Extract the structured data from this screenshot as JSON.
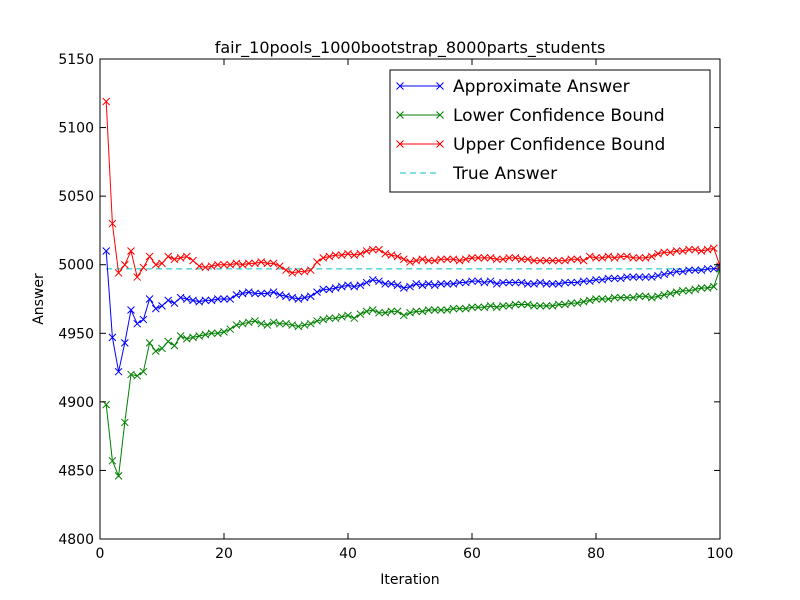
{
  "chart_data": {
    "type": "line",
    "title": "fair_10pools_1000bootstrap_8000parts_students",
    "xlabel": "Iteration",
    "ylabel": "Answer",
    "xlim": [
      0,
      100
    ],
    "ylim": [
      4800,
      5150
    ],
    "xticks": [
      0,
      20,
      40,
      60,
      80,
      100
    ],
    "yticks": [
      4800,
      4850,
      4900,
      4950,
      5000,
      5050,
      5100,
      5150
    ],
    "grid": false,
    "legend_position": "top-right",
    "x": [
      1,
      2,
      3,
      4,
      5,
      6,
      7,
      8,
      9,
      10,
      11,
      12,
      13,
      14,
      15,
      16,
      17,
      18,
      19,
      20,
      21,
      22,
      23,
      24,
      25,
      26,
      27,
      28,
      29,
      30,
      31,
      32,
      33,
      34,
      35,
      36,
      37,
      38,
      39,
      40,
      41,
      42,
      43,
      44,
      45,
      46,
      47,
      48,
      49,
      50,
      51,
      52,
      53,
      54,
      55,
      56,
      57,
      58,
      59,
      60,
      61,
      62,
      63,
      64,
      65,
      66,
      67,
      68,
      69,
      70,
      71,
      72,
      73,
      74,
      75,
      76,
      77,
      78,
      79,
      80,
      81,
      82,
      83,
      84,
      85,
      86,
      87,
      88,
      89,
      90,
      91,
      92,
      93,
      94,
      95,
      96,
      97,
      98,
      99,
      100
    ],
    "series": [
      {
        "name": "Approximate Answer",
        "color": "#0000ff",
        "marker": "x",
        "linestyle": "solid",
        "values": [
          5010,
          4947,
          4922,
          4943,
          4967,
          4957,
          4960,
          4975,
          4968,
          4970,
          4974,
          4972,
          4976,
          4975,
          4974,
          4973,
          4974,
          4974,
          4975,
          4975,
          4975,
          4978,
          4979,
          4980,
          4979,
          4979,
          4979,
          4980,
          4978,
          4977,
          4976,
          4975,
          4976,
          4977,
          4980,
          4982,
          4982,
          4983,
          4984,
          4985,
          4984,
          4985,
          4987,
          4989,
          4988,
          4986,
          4986,
          4985,
          4983,
          4984,
          4986,
          4985,
          4986,
          4985,
          4986,
          4986,
          4986,
          4987,
          4987,
          4988,
          4988,
          4987,
          4988,
          4986,
          4987,
          4987,
          4987,
          4987,
          4986,
          4986,
          4987,
          4986,
          4986,
          4986,
          4987,
          4987,
          4987,
          4988,
          4988,
          4989,
          4989,
          4990,
          4990,
          4990,
          4991,
          4991,
          4991,
          4991,
          4991,
          4992,
          4993,
          4994,
          4995,
          4995,
          4996,
          4996,
          4996,
          4997,
          4997,
          4998
        ]
      },
      {
        "name": "Lower Confidence Bound",
        "color": "#008000",
        "marker": "x",
        "linestyle": "solid",
        "values": [
          4898,
          4857,
          4846,
          4885,
          4920,
          4919,
          4922,
          4943,
          4937,
          4939,
          4944,
          4941,
          4948,
          4946,
          4947,
          4948,
          4949,
          4950,
          4950,
          4951,
          4953,
          4956,
          4957,
          4958,
          4959,
          4957,
          4956,
          4958,
          4957,
          4957,
          4956,
          4955,
          4956,
          4957,
          4959,
          4960,
          4961,
          4961,
          4962,
          4963,
          4961,
          4964,
          4966,
          4967,
          4965,
          4965,
          4966,
          4966,
          4963,
          4965,
          4966,
          4966,
          4967,
          4967,
          4967,
          4967,
          4968,
          4968,
          4968,
          4969,
          4969,
          4969,
          4970,
          4969,
          4970,
          4970,
          4971,
          4971,
          4971,
          4970,
          4970,
          4970,
          4970,
          4971,
          4971,
          4972,
          4972,
          4973,
          4974,
          4975,
          4975,
          4975,
          4976,
          4976,
          4976,
          4976,
          4977,
          4977,
          4976,
          4977,
          4978,
          4979,
          4980,
          4981,
          4981,
          4982,
          4983,
          4983,
          4984,
          4997
        ]
      },
      {
        "name": "Upper Confidence Bound",
        "color": "#ff0000",
        "marker": "x",
        "linestyle": "solid",
        "values": [
          5119,
          5030,
          4994,
          5000,
          5010,
          4991,
          4998,
          5006,
          5000,
          5001,
          5006,
          5004,
          5005,
          5006,
          5003,
          4999,
          4998,
          4999,
          5000,
          5000,
          5000,
          5001,
          5000,
          5001,
          5001,
          5002,
          5001,
          5001,
          4999,
          4996,
          4994,
          4995,
          4995,
          4996,
          5002,
          5005,
          5006,
          5007,
          5007,
          5008,
          5007,
          5008,
          5010,
          5011,
          5011,
          5008,
          5007,
          5006,
          5004,
          5002,
          5003,
          5004,
          5003,
          5003,
          5004,
          5004,
          5004,
          5003,
          5004,
          5005,
          5005,
          5005,
          5005,
          5004,
          5004,
          5005,
          5005,
          5004,
          5004,
          5003,
          5003,
          5003,
          5003,
          5003,
          5003,
          5004,
          5004,
          5003,
          5006,
          5005,
          5005,
          5006,
          5005,
          5006,
          5006,
          5005,
          5005,
          5005,
          5006,
          5008,
          5009,
          5009,
          5010,
          5010,
          5011,
          5011,
          5010,
          5011,
          5012,
          4999
        ]
      },
      {
        "name": "True Answer",
        "color": "#00bfbf",
        "marker": "none",
        "linestyle": "dashed",
        "values": [
          4997,
          4997,
          4997,
          4997,
          4997,
          4997,
          4997,
          4997,
          4997,
          4997,
          4997,
          4997,
          4997,
          4997,
          4997,
          4997,
          4997,
          4997,
          4997,
          4997,
          4997,
          4997,
          4997,
          4997,
          4997,
          4997,
          4997,
          4997,
          4997,
          4997,
          4997,
          4997,
          4997,
          4997,
          4997,
          4997,
          4997,
          4997,
          4997,
          4997,
          4997,
          4997,
          4997,
          4997,
          4997,
          4997,
          4997,
          4997,
          4997,
          4997,
          4997,
          4997,
          4997,
          4997,
          4997,
          4997,
          4997,
          4997,
          4997,
          4997,
          4997,
          4997,
          4997,
          4997,
          4997,
          4997,
          4997,
          4997,
          4997,
          4997,
          4997,
          4997,
          4997,
          4997,
          4997,
          4997,
          4997,
          4997,
          4997,
          4997,
          4997,
          4997,
          4997,
          4997,
          4997,
          4997,
          4997,
          4997,
          4997,
          4997,
          4997,
          4997,
          4997,
          4997,
          4997,
          4997,
          4997,
          4997,
          4997,
          4997
        ]
      }
    ]
  }
}
